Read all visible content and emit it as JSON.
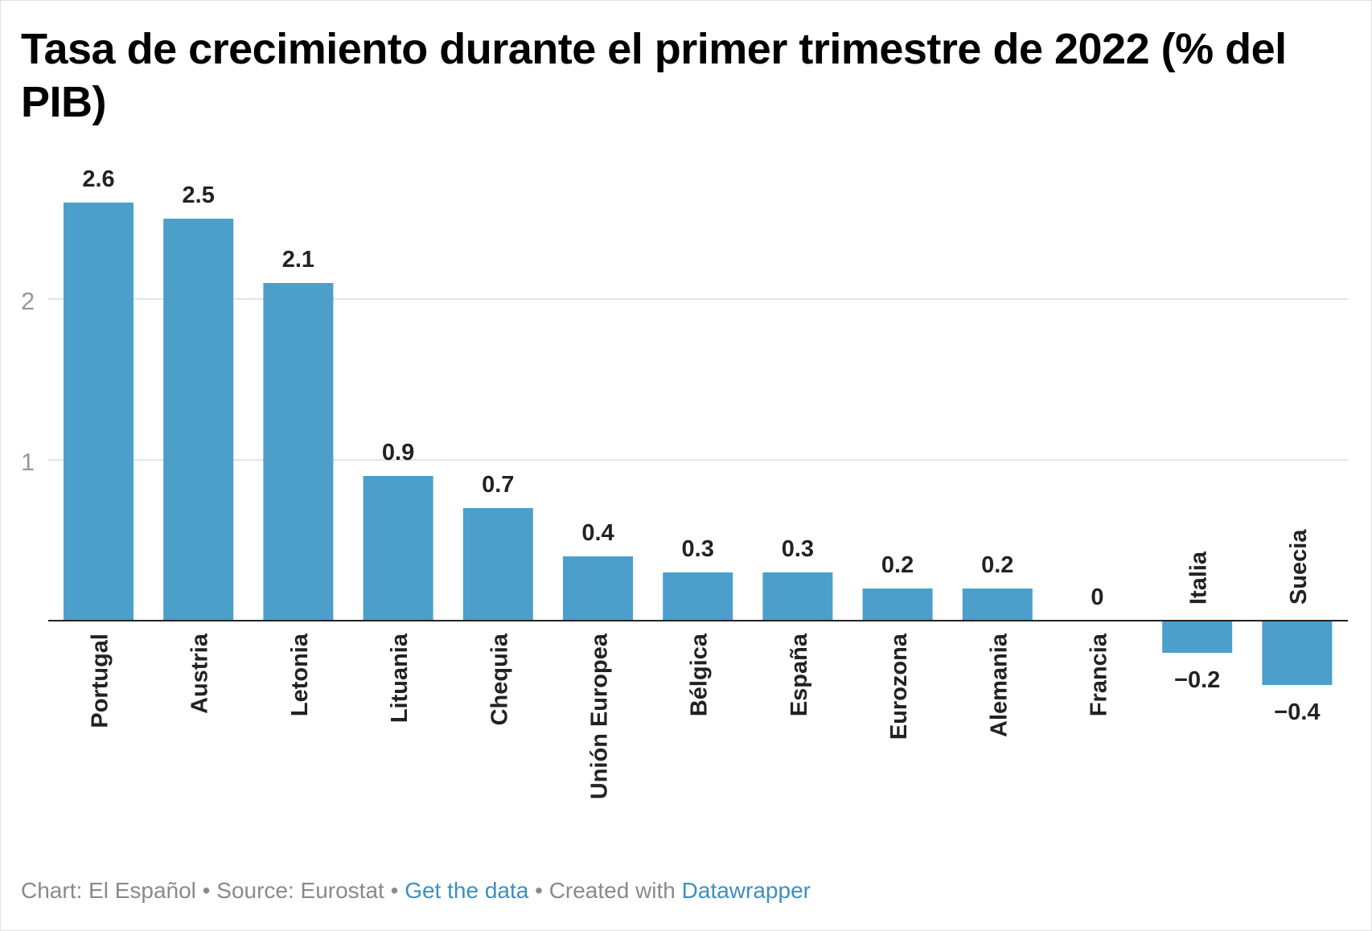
{
  "chart_data": {
    "type": "bar",
    "title": "Tasa de crecimiento durante el primer trimestre de 2022 (% del PIB)",
    "xlabel": "",
    "ylabel": "",
    "categories": [
      "Portugal",
      "Austria",
      "Letonia",
      "Lituania",
      "Chequia",
      "Unión Europea",
      "Bélgica",
      "España",
      "Eurozona",
      "Alemania",
      "Francia",
      "Italia",
      "Suecia"
    ],
    "values": [
      2.6,
      2.5,
      2.1,
      0.9,
      0.7,
      0.4,
      0.3,
      0.3,
      0.2,
      0.2,
      0,
      -0.2,
      -0.4
    ],
    "value_labels": [
      "2.6",
      "2.5",
      "2.1",
      "0.9",
      "0.7",
      "0.4",
      "0.3",
      "0.3",
      "0.2",
      "0.2",
      "0",
      "−0.2",
      "−0.4"
    ],
    "yticks": [
      1,
      2
    ],
    "ytick_labels": [
      "1",
      "2"
    ],
    "ylim": [
      -0.4,
      2.6
    ],
    "grid": true,
    "legend": "none",
    "bar_color": "#4b9fca"
  },
  "footer": {
    "chart_credit": "Chart: El Español",
    "sep1": "•",
    "source": "Source: Eurostat",
    "sep2": "•",
    "get_data_link": "Get the data",
    "sep3": "•",
    "created_with": "Created with",
    "datawrapper_link": "Datawrapper"
  },
  "colors": {
    "bar": "#4b9fca",
    "link": "#3e8ebf",
    "footer_text": "#8a8a8a",
    "gridline": "#e4e4e4",
    "axis_tick": "#999999"
  }
}
